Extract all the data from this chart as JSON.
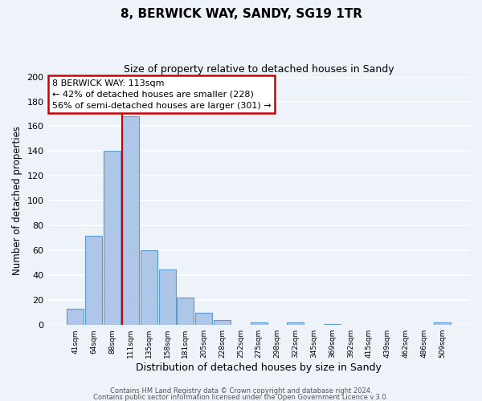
{
  "title1": "8, BERWICK WAY, SANDY, SG19 1TR",
  "title2": "Size of property relative to detached houses in Sandy",
  "xlabel": "Distribution of detached houses by size in Sandy",
  "ylabel": "Number of detached properties",
  "bar_labels": [
    "41sqm",
    "64sqm",
    "88sqm",
    "111sqm",
    "135sqm",
    "158sqm",
    "181sqm",
    "205sqm",
    "228sqm",
    "252sqm",
    "275sqm",
    "298sqm",
    "322sqm",
    "345sqm",
    "369sqm",
    "392sqm",
    "415sqm",
    "439sqm",
    "462sqm",
    "486sqm",
    "509sqm"
  ],
  "bar_values": [
    13,
    72,
    140,
    168,
    60,
    45,
    22,
    10,
    4,
    0,
    2,
    0,
    2,
    0,
    1,
    0,
    0,
    0,
    0,
    0,
    2
  ],
  "bar_color": "#aec6e8",
  "bar_edge_color": "#5b9bd5",
  "vline_color": "#cc0000",
  "annotation_title": "8 BERWICK WAY: 113sqm",
  "annotation_line1": "← 42% of detached houses are smaller (228)",
  "annotation_line2": "56% of semi-detached houses are larger (301) →",
  "annotation_box_color": "#ffffff",
  "annotation_box_edge": "#cc0000",
  "ylim": [
    0,
    200
  ],
  "yticks": [
    0,
    20,
    40,
    60,
    80,
    100,
    120,
    140,
    160,
    180,
    200
  ],
  "footer1": "Contains HM Land Registry data © Crown copyright and database right 2024.",
  "footer2": "Contains public sector information licensed under the Open Government Licence v.3.0.",
  "bg_color": "#eef2f9",
  "plot_bg_color": "#eef2f9"
}
